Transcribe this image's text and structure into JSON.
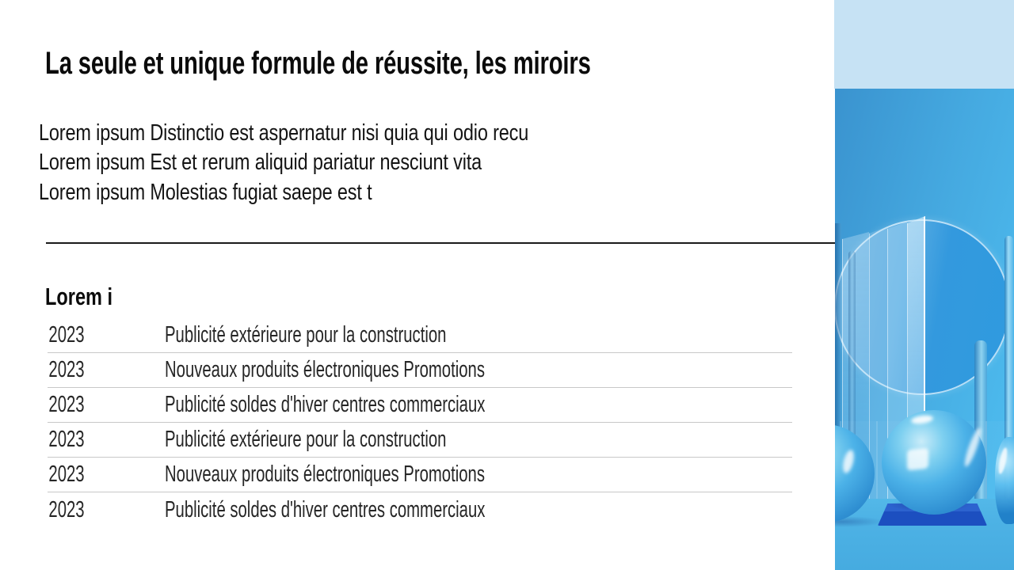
{
  "slide": {
    "title": "La seule et unique formule de réussite, les miroirs",
    "body_lines": [
      "Lorem ipsum Distinctio est aspernatur nisi quia qui odio recu",
      "Lorem ipsum Est et rerum aliquid pariatur nesciunt vita",
      "Lorem ipsum Molestias fugiat saepe est t"
    ],
    "section_heading": "Lorem i",
    "table": {
      "rows": [
        {
          "year": "2023",
          "label": "Publicité extérieure pour la construction"
        },
        {
          "year": "2023",
          "label": "Nouveaux produits électroniques Promotions"
        },
        {
          "year": "2023",
          "label": "Publicité soldes d'hiver centres commerciaux"
        },
        {
          "year": "2023",
          "label": "Publicité extérieure pour la construction"
        },
        {
          "year": "2023",
          "label": "Nouveaux produits électroniques Promotions"
        },
        {
          "year": "2023",
          "label": "Publicité soldes d'hiver centres commerciaux"
        }
      ]
    },
    "decorative_image": {
      "description": "3D render: blue glossy spheres on a dark blue platform, glass pillars and a circular mirror disc on a blue background"
    }
  },
  "colors": {
    "background": "#ffffff",
    "text": "#121212",
    "divider": "#1a1a1a",
    "table_border": "#c8c8c8",
    "panel_light_blue": "#c6e2f4",
    "wall_left": "#3a93cf",
    "wall_right": "#4fc0f2",
    "floor_blue": "#4db2e5",
    "platform_top": "#2c63cf",
    "platform_front": "#1c4fc0",
    "sphere_light": "#c9ecf9",
    "sphere_dark": "#2878bd",
    "disc_blue": "#2f9bdf"
  }
}
